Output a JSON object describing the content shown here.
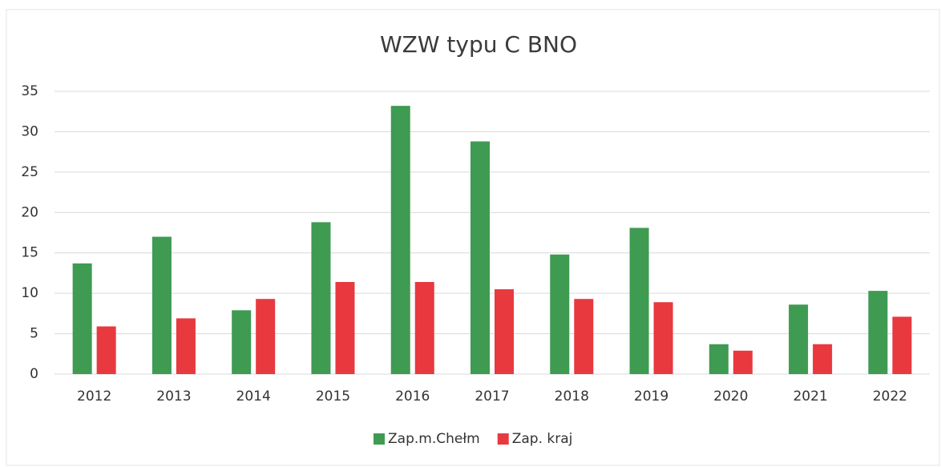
{
  "chart_data": {
    "type": "bar",
    "title": "WZW typu C BNO",
    "categories": [
      "2012",
      "2013",
      "2014",
      "2015",
      "2016",
      "2017",
      "2018",
      "2019",
      "2020",
      "2021",
      "2022"
    ],
    "series": [
      {
        "name": "Zap.m.Chełm",
        "color": "#3f9a52",
        "values": [
          13.7,
          17.0,
          7.9,
          18.8,
          33.2,
          28.8,
          14.8,
          18.1,
          3.7,
          8.6,
          10.3
        ]
      },
      {
        "name": "Zap. kraj",
        "color": "#e8393f",
        "values": [
          5.9,
          6.9,
          9.3,
          11.4,
          11.4,
          10.5,
          9.3,
          8.9,
          2.9,
          3.7,
          7.1
        ]
      }
    ],
    "ylim": [
      0,
      35
    ],
    "yticks": [
      0,
      5,
      10,
      15,
      20,
      25,
      30,
      35
    ],
    "grid": true,
    "legend": "bottom"
  }
}
